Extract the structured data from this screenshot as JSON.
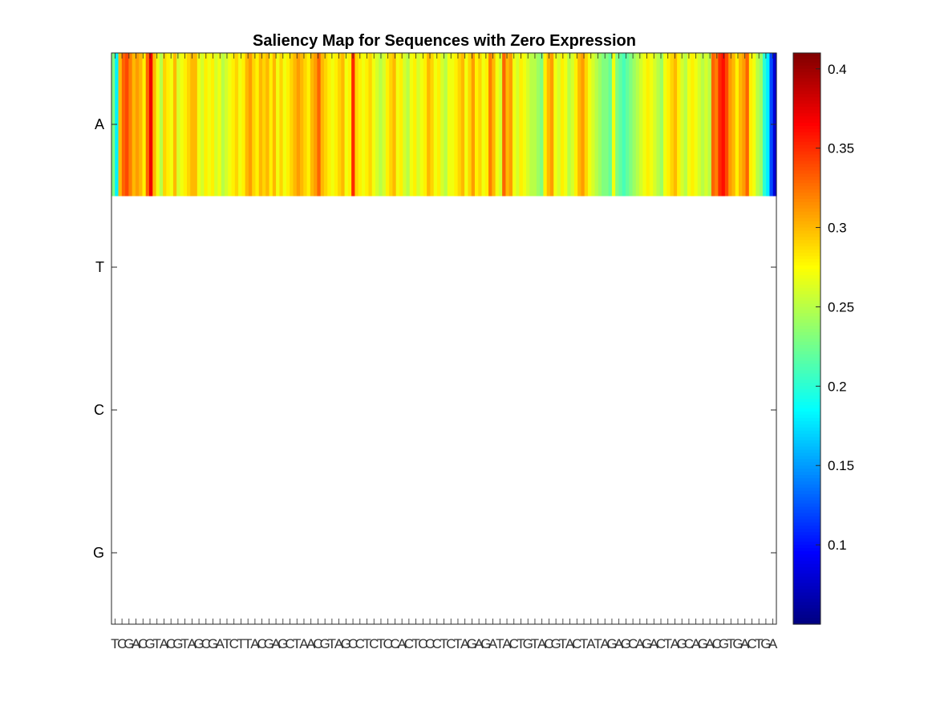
{
  "chart_data": {
    "type": "heatmap",
    "title": "Saliency Map for Sequences with Zero Expression",
    "y_categories": [
      "A",
      "T",
      "C",
      "G"
    ],
    "x_categories": [
      "T",
      "C",
      "G",
      "A",
      "C",
      "G",
      "T",
      "A",
      "C",
      "G",
      "T",
      "A",
      "G",
      "C",
      "G",
      "A",
      "T",
      "C",
      "T",
      "T",
      "A",
      "C",
      "G",
      "A",
      "G",
      "C",
      "T",
      "A",
      "A",
      "C",
      "G",
      "T",
      "A",
      "G",
      "C",
      "C",
      "T",
      "C",
      "T",
      "C",
      "C",
      "A",
      "C",
      "T",
      "C",
      "C",
      "C",
      "T",
      "C",
      "T",
      "A",
      "G",
      "A",
      "G",
      "A",
      "T",
      "A",
      "C",
      "T",
      "G",
      "T",
      "A",
      "C",
      "G",
      "T",
      "A",
      "C",
      "T",
      "A",
      "T",
      "A",
      "G",
      "A",
      "G",
      "C",
      "A",
      "G",
      "A",
      "C",
      "T",
      "A",
      "G",
      "C",
      "A",
      "G",
      "A",
      "C",
      "G",
      "T",
      "G",
      "A",
      "C",
      "T",
      "G",
      "A"
    ],
    "series": [
      {
        "values": [
          0.23,
          0.18,
          0.3,
          0.33,
          0.34,
          0.32,
          0.3,
          0.31,
          0.3,
          0.28,
          0.33,
          0.37,
          0.3,
          0.27,
          0.25,
          0.29,
          0.28,
          0.27,
          0.3,
          0.26,
          0.27,
          0.28,
          0.29,
          0.3,
          0.3,
          0.27,
          0.26,
          0.28,
          0.27,
          0.28,
          0.26,
          0.27,
          0.25,
          0.26,
          0.27,
          0.28,
          0.29,
          0.27,
          0.28,
          0.3,
          0.31,
          0.29,
          0.28,
          0.3,
          0.29,
          0.3,
          0.28,
          0.3,
          0.27,
          0.29,
          0.27,
          0.28,
          0.29,
          0.3,
          0.31,
          0.3,
          0.29,
          0.28,
          0.3,
          0.31,
          0.33,
          0.3,
          0.29,
          0.28,
          0.27,
          0.28,
          0.29,
          0.3,
          0.27,
          0.28,
          0.35,
          0.29,
          0.28,
          0.27,
          0.28,
          0.29,
          0.27,
          0.26,
          0.25,
          0.26,
          0.28,
          0.29,
          0.3,
          0.27,
          0.28,
          0.26,
          0.25,
          0.27,
          0.28,
          0.26,
          0.27,
          0.28,
          0.3,
          0.29,
          0.27,
          0.28,
          0.26,
          0.25,
          0.27,
          0.27,
          0.28,
          0.29,
          0.3,
          0.27,
          0.29,
          0.31,
          0.28,
          0.29,
          0.27,
          0.28,
          0.32,
          0.3,
          0.27,
          0.26,
          0.33,
          0.3,
          0.31,
          0.27,
          0.26,
          0.28,
          0.27,
          0.26,
          0.25,
          0.25,
          0.24,
          0.23,
          0.28,
          0.3,
          0.31,
          0.27,
          0.26,
          0.28,
          0.27,
          0.25,
          0.26,
          0.28,
          0.3,
          0.31,
          0.29,
          0.27,
          0.26,
          0.25,
          0.24,
          0.23,
          0.23,
          0.22,
          0.27,
          0.23,
          0.22,
          0.21,
          0.22,
          0.23,
          0.24,
          0.25,
          0.26,
          0.27,
          0.28,
          0.27,
          0.26,
          0.25,
          0.24,
          0.27,
          0.28,
          0.29,
          0.3,
          0.28,
          0.26,
          0.25,
          0.27,
          0.28,
          0.27,
          0.26,
          0.25,
          0.26,
          0.25,
          0.33,
          0.32,
          0.35,
          0.36,
          0.34,
          0.31,
          0.3,
          0.28,
          0.3,
          0.31,
          0.33,
          0.28,
          0.27,
          0.25,
          0.24,
          0.2,
          0.18,
          0.12,
          0.08
        ]
      },
      {
        "values": []
      },
      {
        "values": []
      },
      {
        "values": []
      }
    ],
    "colorbar": {
      "colormap": "jet",
      "min": 0.05,
      "max": 0.41,
      "ticks": [
        "0.1",
        "0.15",
        "0.2",
        "0.25",
        "0.3",
        "0.35",
        "0.4"
      ]
    }
  }
}
